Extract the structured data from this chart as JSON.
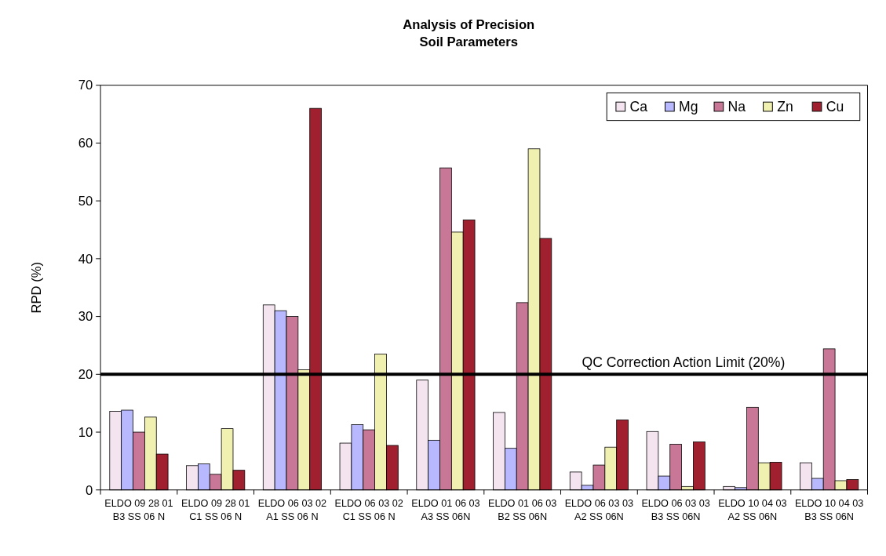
{
  "chart_data": {
    "type": "bar",
    "title": "Analysis of Precision\nSoil Parameters",
    "ylabel": "RPD (%)",
    "categories": [
      "ELDO 09 28 01 B3 SS 06 N",
      "ELDO 09 28 01 C1 SS 06 N",
      "ELDO 06 03 02 A1 SS 06 N",
      "ELDO 06 03 02 C1 SS 06 N",
      "ELDO 01 06 03 A3 SS 06N",
      "ELDO 01 06 03 B2 SS 06N",
      "ELDO 06 03 03 A2 SS 06N",
      "ELDO 06 03 03 B3 SS 06N",
      "ELDO 10 04 03 A2 SS 06N",
      "ELDO 10 04 03 B3 SS 06N"
    ],
    "series": [
      {
        "name": "Ca",
        "color": "#f4e4f0",
        "values": [
          13.6,
          4.2,
          32,
          8.1,
          19,
          13.4,
          3.1,
          10.1,
          0.6,
          4.7
        ]
      },
      {
        "name": "Mg",
        "color": "#b8b8ff",
        "values": [
          13.8,
          4.5,
          31,
          11.3,
          8.6,
          7.2,
          0.8,
          2.4,
          0.4,
          2.0
        ]
      },
      {
        "name": "Na",
        "color": "#c87896",
        "values": [
          10,
          2.7,
          30,
          10.4,
          55.7,
          32.4,
          4.3,
          7.9,
          14.3,
          24.4
        ]
      },
      {
        "name": "Zn",
        "color": "#f0f0b0",
        "values": [
          12.6,
          10.6,
          20.8,
          23.5,
          44.6,
          59,
          7.4,
          0.6,
          4.7,
          1.6
        ]
      },
      {
        "name": "Cu",
        "color": "#a02030",
        "values": [
          6.2,
          3.4,
          66,
          7.7,
          46.7,
          43.5,
          12.1,
          8.3,
          4.8,
          1.8
        ]
      }
    ],
    "ylim": [
      0,
      70
    ],
    "yticks": [
      0,
      10,
      20,
      30,
      40,
      50,
      60,
      70
    ],
    "grid": false,
    "legend": "top right",
    "ref_lines": [
      {
        "axis": "y",
        "value": 20,
        "label": "QC Correction Action Limit (20%)",
        "color": "#000000"
      }
    ]
  }
}
